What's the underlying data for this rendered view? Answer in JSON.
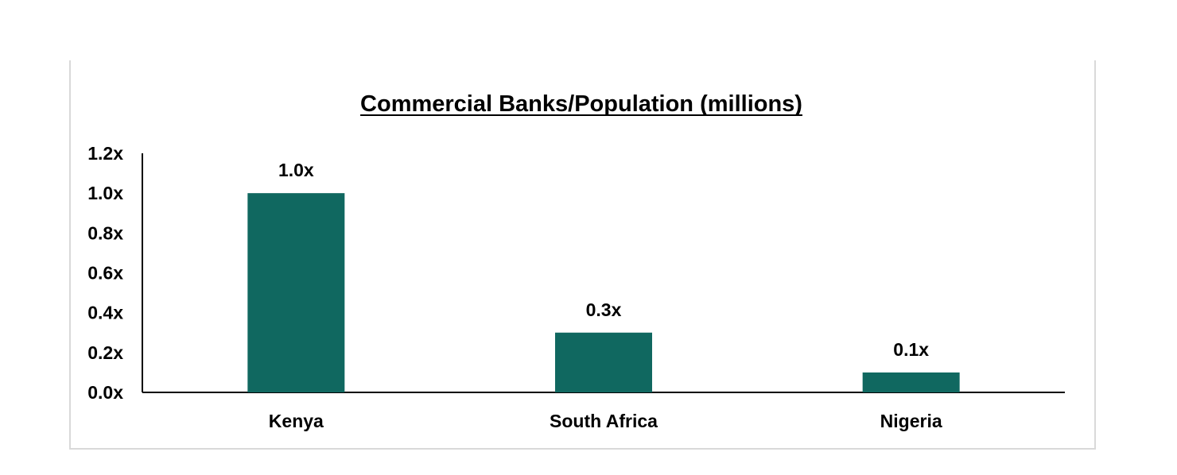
{
  "chart_data": {
    "type": "bar",
    "title": "Commercial Banks/Population (millions)",
    "categories": [
      "Kenya",
      "South Africa",
      "Nigeria"
    ],
    "values": [
      1.0,
      0.3,
      0.1
    ],
    "data_labels": [
      "1.0x",
      "0.3x",
      "0.1x"
    ],
    "ylim": [
      0,
      1.2
    ],
    "yticks": [
      0,
      0.2,
      0.4,
      0.6,
      0.8,
      1.0,
      1.2
    ],
    "ytick_labels": [
      "0.0x",
      "0.2x",
      "0.4x",
      "0.6x",
      "0.8x",
      "1.0x",
      "1.2x"
    ],
    "xlabel": "",
    "ylabel": "",
    "grid": false,
    "bar_color": "#106860"
  }
}
